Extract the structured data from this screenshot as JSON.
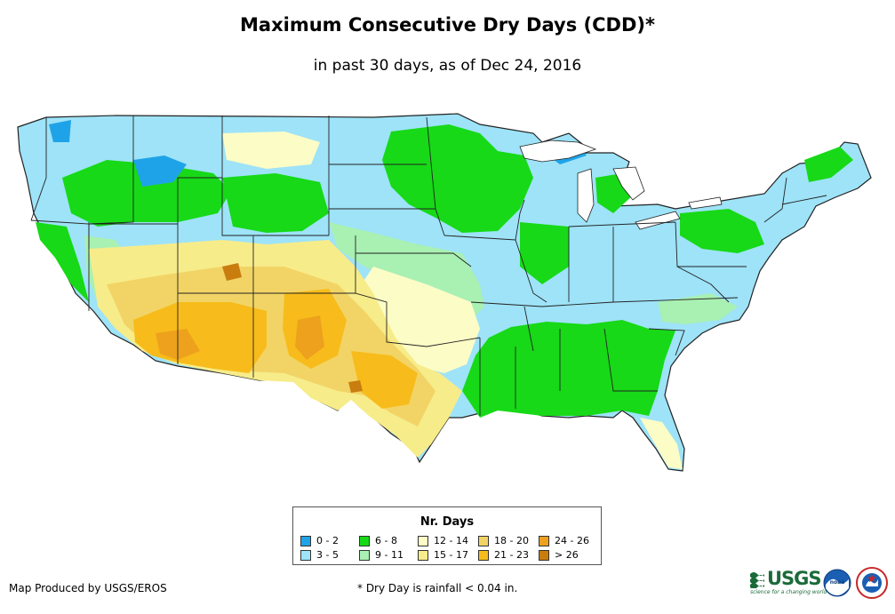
{
  "title": "Maximum Consecutive Dry Days (CDD)*",
  "subtitle": "in past 30 days, as of Dec 24, 2016",
  "legend": {
    "title": "Nr. Days",
    "items": [
      {
        "label": "0 - 2",
        "color": "#1fa3e8"
      },
      {
        "label": "3 - 5",
        "color": "#9ee3f8"
      },
      {
        "label": "6 - 8",
        "color": "#17d917"
      },
      {
        "label": "9 - 11",
        "color": "#a9f0b3"
      },
      {
        "label": "12 - 14",
        "color": "#fcfcc6"
      },
      {
        "label": "15 - 17",
        "color": "#f7ec8a"
      },
      {
        "label": "18 - 20",
        "color": "#f2d466"
      },
      {
        "label": "21 - 23",
        "color": "#f7bc1b"
      },
      {
        "label": "24 - 26",
        "color": "#eda11c"
      },
      {
        "label": "> 26",
        "color": "#c97d0f"
      }
    ]
  },
  "footer": {
    "credit": "Map Produced by USGS/EROS",
    "footnote": "* Dry Day is rainfall < 0.04 in."
  },
  "logos": {
    "usgs_text": "USGS",
    "usgs_tagline": "science for a changing world",
    "noaa_text": "noaa"
  },
  "colors": {
    "boundary": "#222222",
    "usgs_green": "#1b6b3a",
    "noaa_blue": "#1a5fb4"
  }
}
